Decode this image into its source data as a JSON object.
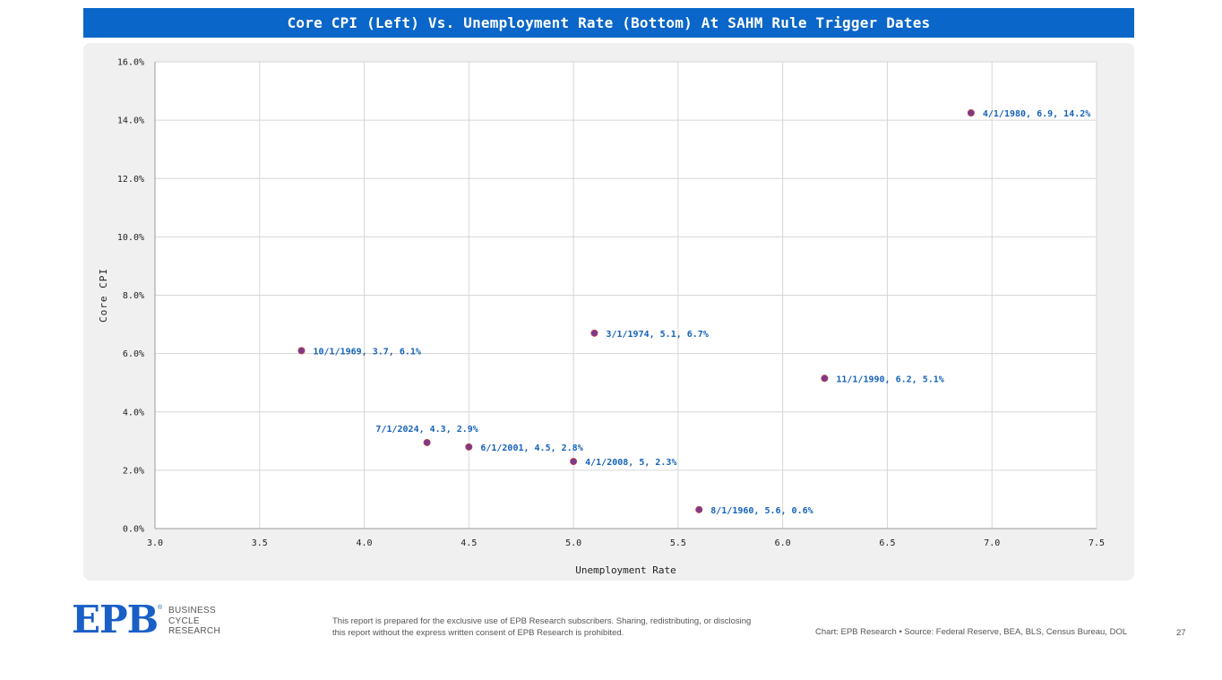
{
  "chart_data": {
    "type": "scatter",
    "title": "Core CPI (Left) Vs. Unemployment Rate (Bottom) At SAHM Rule Trigger Dates",
    "xlabel": "Unemployment Rate",
    "ylabel": "Core CPI",
    "xlim": [
      3.0,
      7.5
    ],
    "ylim": [
      0,
      16
    ],
    "x_ticks": [
      "3.0",
      "3.5",
      "4.0",
      "4.5",
      "5.0",
      "5.5",
      "6.0",
      "6.5",
      "7.0",
      "7.5"
    ],
    "y_ticks": [
      "0.0%",
      "2.0%",
      "4.0%",
      "6.0%",
      "8.0%",
      "10.0%",
      "12.0%",
      "14.0%",
      "16.0%"
    ],
    "grid": true,
    "point_color": "#7b3a8e",
    "label_color": "#1462b8",
    "points": [
      {
        "x": 3.7,
        "y": 6.1,
        "label": "10/1/1969, 3.7, 6.1%"
      },
      {
        "x": 4.3,
        "y": 2.95,
        "label": "7/1/2024, 4.3, 2.9%"
      },
      {
        "x": 4.5,
        "y": 2.8,
        "label": "6/1/2001, 4.5, 2.8%"
      },
      {
        "x": 5.0,
        "y": 2.3,
        "label": "4/1/2008, 5, 2.3%"
      },
      {
        "x": 5.1,
        "y": 6.7,
        "label": "3/1/1974, 5.1, 6.7%"
      },
      {
        "x": 5.6,
        "y": 0.65,
        "label": "8/1/1960, 5.6, 0.6%"
      },
      {
        "x": 6.2,
        "y": 5.15,
        "label": "11/1/1990, 6.2, 5.1%"
      },
      {
        "x": 6.9,
        "y": 14.25,
        "label": "4/1/1980, 6.9, 14.2%"
      }
    ]
  },
  "footer": {
    "logo_letters": "EPB",
    "logo_reg": "®",
    "logo_sub": [
      "BUSINESS",
      "CYCLE",
      "RESEARCH"
    ],
    "disclaimer": "This report is prepared for the exclusive use of EPB Research subscribers. Sharing, redistributing, or disclosing this report without the express written consent of EPB Research is prohibited.",
    "source": "Chart: EPB Research  •  Source: Federal Reserve, BEA, BLS, Census Bureau, DOL",
    "page_number": "27"
  }
}
